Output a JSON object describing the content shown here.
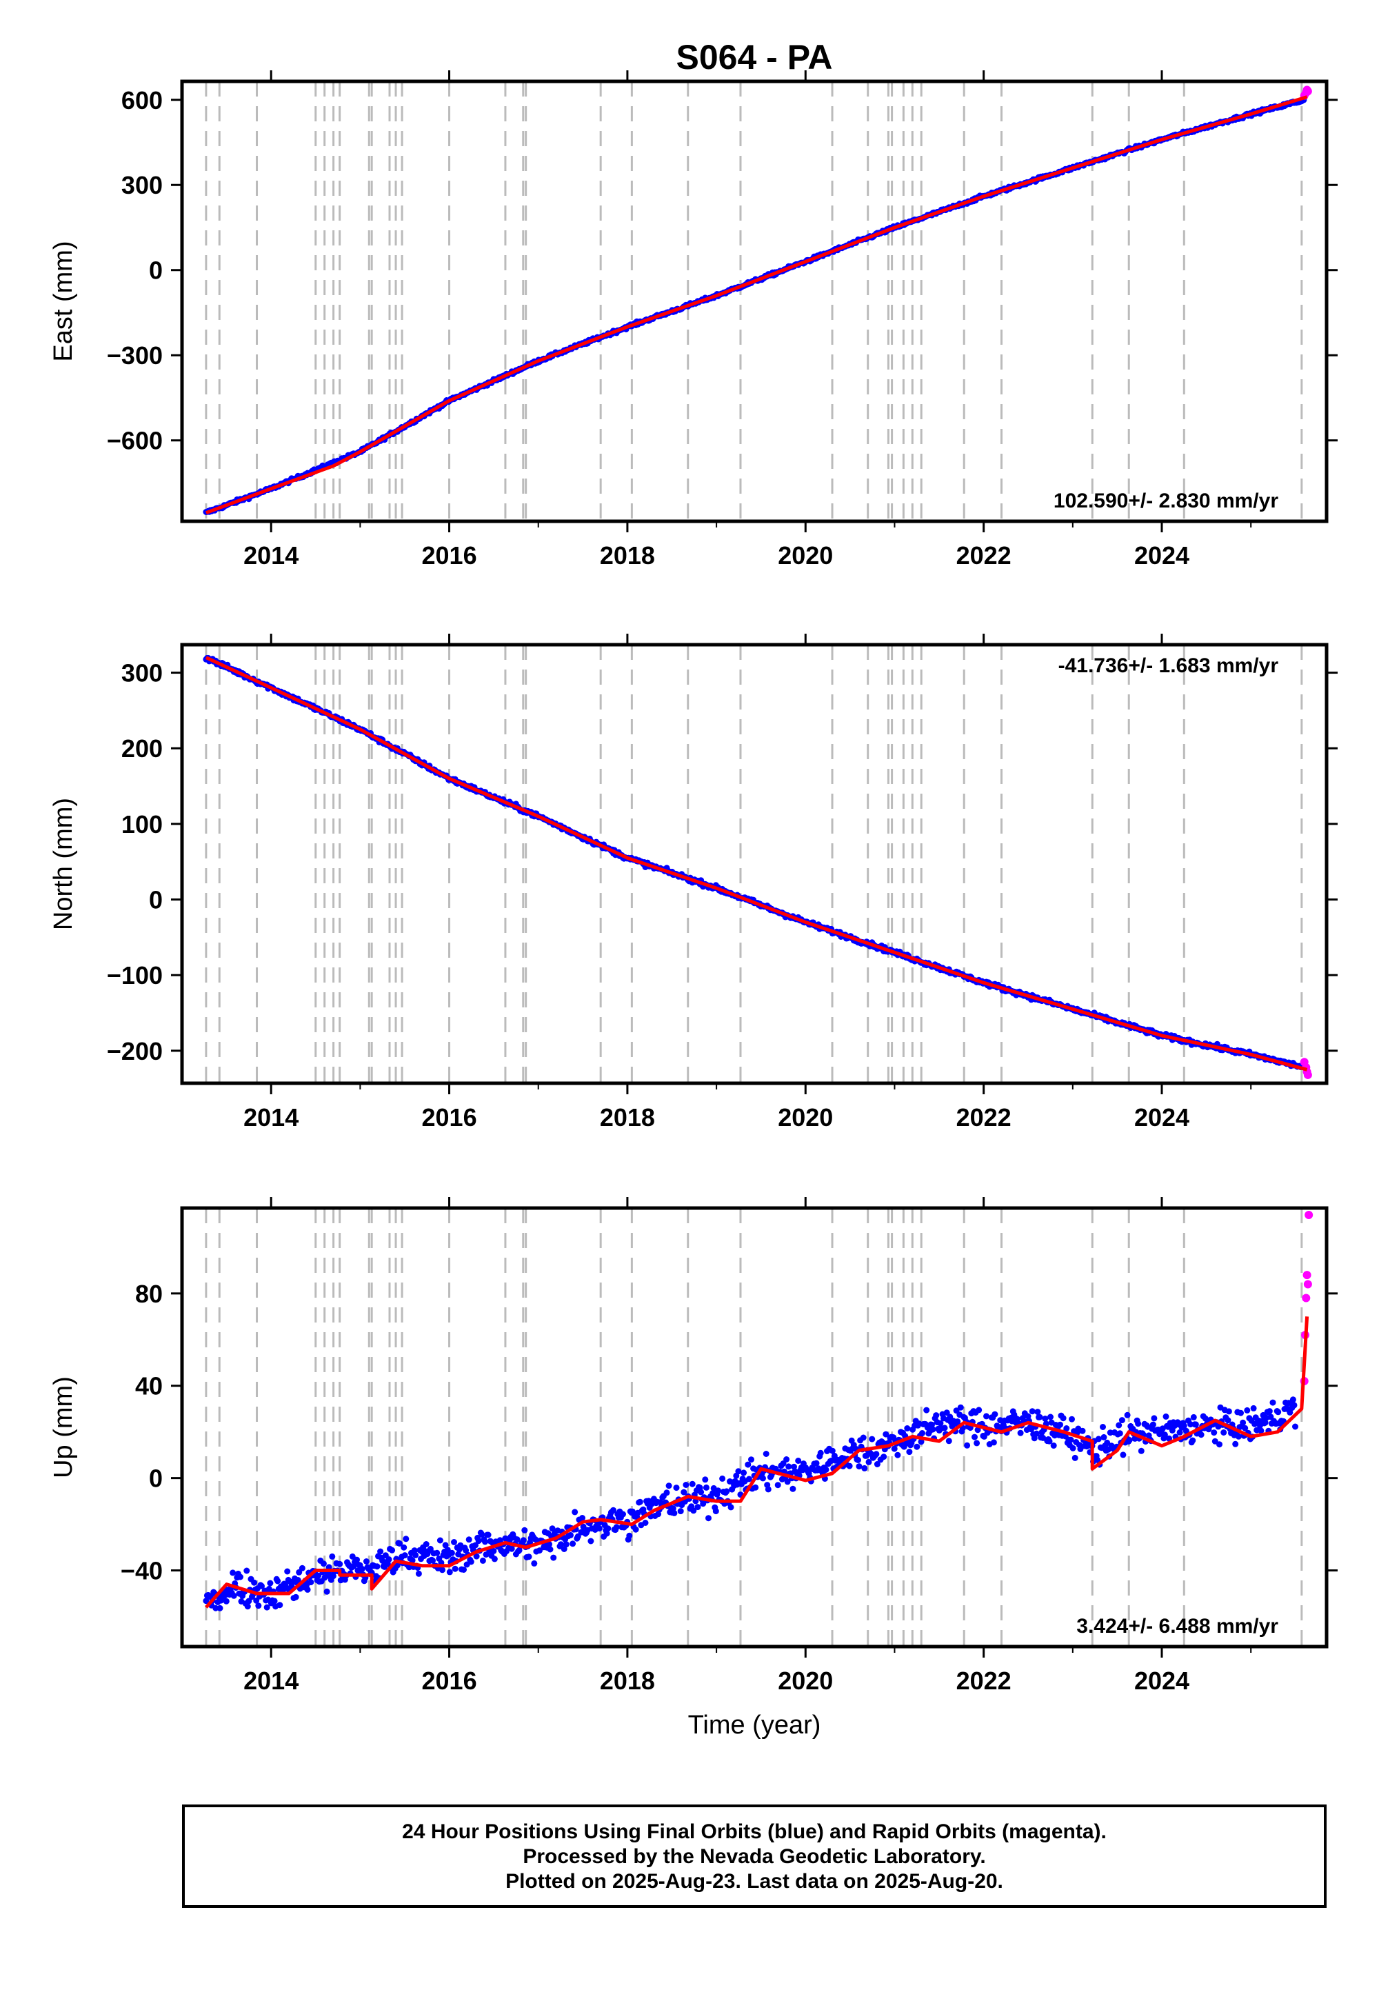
{
  "title": "S064 - PA",
  "xlabel": "Time (year)",
  "x_tick_labels": [
    "2014",
    "2016",
    "2018",
    "2020",
    "2022",
    "2024"
  ],
  "colors": {
    "final": "#0000ff",
    "rapid": "#ff00ff",
    "model": "#ff0000",
    "steps": "#bbbbbb"
  },
  "footer": {
    "line1": "24 Hour Positions Using Final Orbits (blue) and Rapid Orbits (magenta).",
    "line2": "Processed by the Nevada Geodetic Laboratory.",
    "line3": "Plotted on 2025-Aug-23. Last data on 2025-Aug-20."
  },
  "chart_data": [
    {
      "type": "scatter",
      "ylabel": "East (mm)",
      "rate_label": "102.590+/- 2.830 mm/yr",
      "xlim": [
        2013.0,
        2025.85
      ],
      "ylim": [
        -885,
        665
      ],
      "y_ticks": [
        600,
        300,
        0,
        -300,
        -600
      ],
      "y_tick_labels": [
        "600",
        "300",
        "0",
        "−300",
        "−600"
      ],
      "step_lines": [
        2013.27,
        2013.42,
        2013.84,
        2014.5,
        2014.6,
        2014.7,
        2014.77,
        2015.1,
        2015.13,
        2015.33,
        2015.4,
        2015.47,
        2016.0,
        2016.63,
        2016.83,
        2016.86,
        2017.7,
        2018.05,
        2018.68,
        2019.27,
        2020.3,
        2020.7,
        2020.93,
        2020.97,
        2021.1,
        2021.2,
        2021.3,
        2021.78,
        2022.2,
        2023.22,
        2023.63,
        2024.25,
        2025.57
      ],
      "final_series": {
        "x": [
          2013.27,
          2014.0,
          2015.0,
          2016.0,
          2017.0,
          2018.0,
          2019.0,
          2020.0,
          2021.0,
          2022.0,
          2023.0,
          2024.0,
          2025.0,
          2025.6
        ],
        "y": [
          -855,
          -770,
          -640,
          -460,
          -320,
          -200,
          -90,
          30,
          150,
          260,
          360,
          460,
          550,
          600
        ]
      },
      "rapid_points": {
        "x": [
          2025.6,
          2025.62,
          2025.63,
          2025.64
        ],
        "y": [
          615,
          625,
          635,
          630
        ]
      },
      "model_series": {
        "x": [
          2013.27,
          2014.0,
          2014.7,
          2015.0,
          2016.0,
          2017.0,
          2018.0,
          2019.0,
          2020.0,
          2021.0,
          2022.0,
          2023.0,
          2024.0,
          2025.0,
          2025.63
        ],
        "y": [
          -855,
          -770,
          -690,
          -640,
          -460,
          -320,
          -200,
          -90,
          30,
          150,
          260,
          360,
          460,
          550,
          610
        ]
      }
    },
    {
      "type": "scatter",
      "ylabel": "North (mm)",
      "rate_label": "-41.736+/- 1.683 mm/yr",
      "xlim": [
        2013.0,
        2025.85
      ],
      "ylim": [
        -243,
        337
      ],
      "y_ticks": [
        300,
        200,
        100,
        0,
        -100,
        -200
      ],
      "y_tick_labels": [
        "300",
        "200",
        "100",
        "0",
        "−100",
        "−200"
      ],
      "step_lines": [
        2013.27,
        2013.42,
        2013.84,
        2014.5,
        2014.6,
        2014.7,
        2014.77,
        2015.1,
        2015.13,
        2015.33,
        2015.4,
        2015.47,
        2016.0,
        2016.63,
        2016.83,
        2016.86,
        2017.7,
        2018.05,
        2018.68,
        2019.27,
        2020.3,
        2020.7,
        2020.93,
        2020.97,
        2021.1,
        2021.2,
        2021.3,
        2021.78,
        2022.2,
        2023.22,
        2023.63,
        2024.25,
        2025.57
      ],
      "final_series": {
        "x": [
          2013.27,
          2014.0,
          2015.0,
          2016.0,
          2017.0,
          2018.0,
          2019.0,
          2020.0,
          2021.0,
          2022.0,
          2023.0,
          2024.0,
          2025.0,
          2025.6
        ],
        "y": [
          320,
          280,
          225,
          160,
          110,
          55,
          15,
          -30,
          -70,
          -110,
          -145,
          -180,
          -205,
          -222
        ]
      },
      "rapid_points": {
        "x": [
          2025.6,
          2025.62,
          2025.63,
          2025.64
        ],
        "y": [
          -215,
          -222,
          -228,
          -232
        ]
      },
      "model_series": {
        "x": [
          2013.27,
          2014.0,
          2015.0,
          2016.0,
          2017.0,
          2018.0,
          2019.0,
          2020.0,
          2021.0,
          2022.0,
          2023.0,
          2024.0,
          2025.0,
          2025.63
        ],
        "y": [
          320,
          280,
          225,
          160,
          110,
          55,
          15,
          -30,
          -70,
          -110,
          -145,
          -180,
          -205,
          -225
        ]
      }
    },
    {
      "type": "scatter",
      "ylabel": "Up (mm)",
      "rate_label": "3.424+/- 6.488 mm/yr",
      "xlim": [
        2013.0,
        2025.85
      ],
      "ylim": [
        -73,
        117
      ],
      "y_ticks": [
        80,
        40,
        0,
        -40
      ],
      "y_tick_labels": [
        "80",
        "40",
        "0",
        "−40"
      ],
      "step_lines": [
        2013.27,
        2013.42,
        2013.84,
        2014.5,
        2014.6,
        2014.7,
        2014.77,
        2015.1,
        2015.13,
        2015.33,
        2015.4,
        2015.47,
        2016.0,
        2016.63,
        2016.83,
        2016.86,
        2017.7,
        2018.05,
        2018.68,
        2019.27,
        2020.3,
        2020.7,
        2020.93,
        2020.97,
        2021.1,
        2021.2,
        2021.3,
        2021.78,
        2022.2,
        2023.22,
        2023.63,
        2024.25,
        2025.57
      ],
      "final_series": {
        "x": [
          2013.27,
          2013.6,
          2014.0,
          2014.5,
          2014.77,
          2015.13,
          2015.5,
          2016.0,
          2016.5,
          2017.0,
          2017.5,
          2018.0,
          2018.5,
          2019.0,
          2019.5,
          2020.0,
          2020.5,
          2021.0,
          2021.5,
          2022.0,
          2022.5,
          2023.0,
          2023.22,
          2023.5,
          2024.0,
          2024.5,
          2025.0,
          2025.5
        ],
        "y": [
          -55,
          -46,
          -50,
          -42,
          -40,
          -40,
          -33,
          -35,
          -28,
          -30,
          -20,
          -18,
          -10,
          -8,
          2,
          3,
          10,
          15,
          24,
          22,
          24,
          18,
          12,
          18,
          20,
          22,
          22,
          30
        ]
      },
      "rapid_points": {
        "x": [
          2025.6,
          2025.61,
          2025.62,
          2025.63,
          2025.64,
          2025.65
        ],
        "y": [
          42,
          62,
          78,
          88,
          84,
          114
        ]
      },
      "model_series": {
        "x": [
          2013.27,
          2013.5,
          2013.84,
          2014.2,
          2014.5,
          2014.77,
          2014.77,
          2015.13,
          2015.13,
          2015.4,
          2015.7,
          2016.0,
          2016.3,
          2016.63,
          2016.86,
          2017.2,
          2017.5,
          2017.7,
          2018.05,
          2018.3,
          2018.68,
          2019.0,
          2019.27,
          2019.5,
          2020.0,
          2020.3,
          2020.6,
          2020.93,
          2021.2,
          2021.5,
          2021.78,
          2022.2,
          2022.5,
          2022.9,
          2023.22,
          2023.22,
          2023.5,
          2023.63,
          2024.0,
          2024.25,
          2024.6,
          2025.0,
          2025.3,
          2025.57,
          2025.63
        ],
        "y": [
          -56,
          -46,
          -50,
          -50,
          -40,
          -40,
          -42,
          -42,
          -48,
          -36,
          -38,
          -38,
          -32,
          -28,
          -30,
          -26,
          -19,
          -18,
          -20,
          -14,
          -8,
          -10,
          -10,
          4,
          -1,
          2,
          12,
          14,
          18,
          16,
          24,
          20,
          24,
          20,
          16,
          4,
          12,
          20,
          14,
          18,
          25,
          18,
          20,
          30,
          70
        ]
      }
    }
  ]
}
